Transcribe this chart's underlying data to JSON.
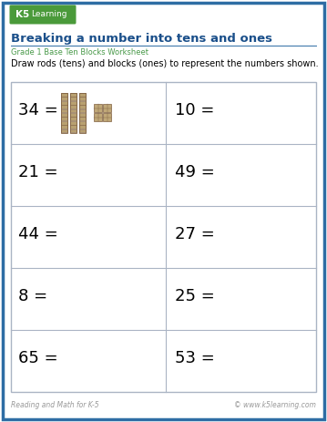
{
  "title": "Breaking a number into tens and ones",
  "subtitle": "Grade 1 Base Ten Blocks Worksheet",
  "instruction": "Draw rods (tens) and blocks (ones) to represent the numbers shown.",
  "grid_numbers": [
    [
      "34 =",
      "10 ="
    ],
    [
      "21 =",
      "49 ="
    ],
    [
      "44 =",
      "27 ="
    ],
    [
      "8 =",
      "25 ="
    ],
    [
      "65 =",
      "53 ="
    ]
  ],
  "footer_left": "Reading and Math for K-5",
  "footer_right": "© www.k5learning.com",
  "bg_color": "#ffffff",
  "border_color": "#2e6da4",
  "title_color": "#1a4f8a",
  "subtitle_color": "#4a9a4a",
  "grid_line_color": "#aab4c4",
  "text_color": "#000000",
  "footer_color": "#999999",
  "logo_green": "#4a9a3a",
  "logo_blue": "#2060a0",
  "rod_color": "#b8a070",
  "rod_edge": "#806040",
  "cube_color": "#c0a878",
  "cube_edge": "#806040"
}
